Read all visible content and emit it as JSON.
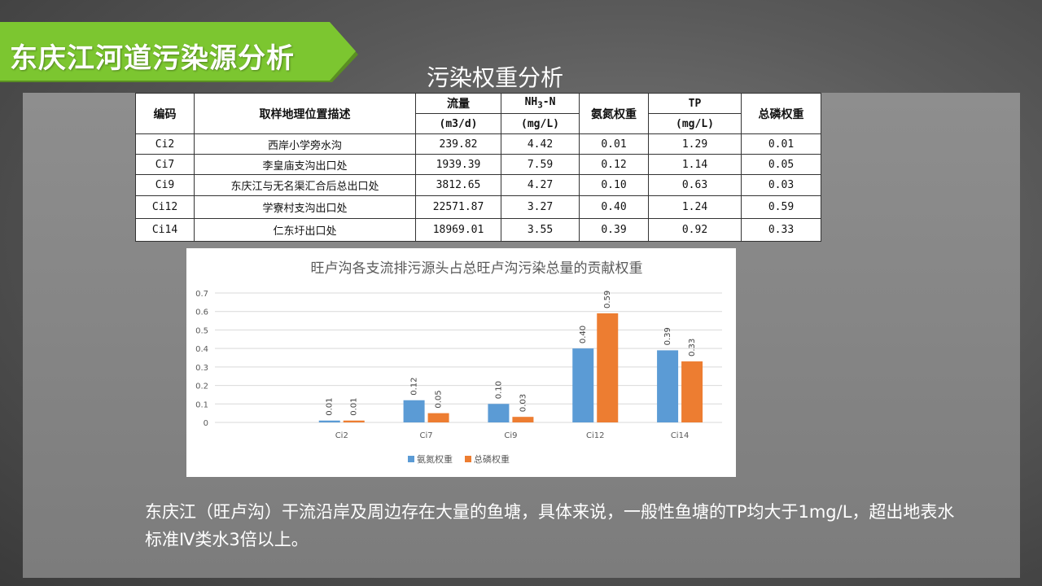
{
  "slide_title": "东庆江河道污染源分析",
  "subtitle": "污染权重分析",
  "colors": {
    "banner": "#7cc630",
    "ammonia": "#5b9bd5",
    "phosphorus": "#ed7d31"
  },
  "table": {
    "headers": {
      "id": "编码",
      "location": "取样地理位置描述",
      "flow": "流量",
      "flow_unit": "(m3/d)",
      "nh3_prefix": "NH",
      "nh3_sub": "3",
      "nh3_suffix": "-N",
      "nh3_unit": "(mg/L)",
      "ammonia_weight": "氨氮权重",
      "tp": "TP",
      "tp_unit": "(mg/L)",
      "tp_weight": "总磷权重"
    },
    "rows": [
      {
        "id": "Ci2",
        "location": "西岸小学旁水沟",
        "flow": "239.82",
        "nh3": "4.42",
        "nh3_w": "0.01",
        "tp": "1.29",
        "tp_w": "0.01"
      },
      {
        "id": "Ci7",
        "location": "李皇庙支沟出口处",
        "flow": "1939.39",
        "nh3": "7.59",
        "nh3_w": "0.12",
        "tp": "1.14",
        "tp_w": "0.05"
      },
      {
        "id": "Ci9",
        "location": "东庆江与无名渠汇合后总出口处",
        "flow": "3812.65",
        "nh3": "4.27",
        "nh3_w": "0.10",
        "tp": "0.63",
        "tp_w": "0.03"
      },
      {
        "id": "Ci12",
        "location": "学寮村支沟出口处",
        "flow": "22571.87",
        "nh3": "3.27",
        "nh3_w": "0.40",
        "tp": "1.24",
        "tp_w": "0.59"
      },
      {
        "id": "Ci14",
        "location": "仁东圩出口处",
        "flow": "18969.01",
        "nh3": "3.55",
        "nh3_w": "0.39",
        "tp": "0.92",
        "tp_w": "0.33"
      }
    ]
  },
  "chart_data": {
    "type": "bar",
    "title": "旺卢沟各支流排污源头占总旺卢沟污染总量的贡献权重",
    "categories": [
      "",
      "Ci2",
      "Ci7",
      "Ci9",
      "Ci12",
      "Ci14"
    ],
    "series": [
      {
        "name": "氨氮权重",
        "values": [
          null,
          0.01,
          0.12,
          0.1,
          0.4,
          0.39
        ],
        "labels": [
          "",
          "0.01",
          "0.12",
          "0.10",
          "0.40",
          "0.39"
        ],
        "color": "#5b9bd5"
      },
      {
        "name": "总磷权重",
        "values": [
          null,
          0.01,
          0.05,
          0.03,
          0.59,
          0.33
        ],
        "labels": [
          "",
          "0.01",
          "0.05",
          "0.03",
          "0.59",
          "0.33"
        ],
        "color": "#ed7d31"
      }
    ],
    "y_ticks": [
      "0",
      "0.1",
      "0.2",
      "0.3",
      "0.4",
      "0.5",
      "0.6",
      "0.7"
    ],
    "ylim": [
      0,
      0.7
    ],
    "grid": true,
    "legend": "bottom"
  },
  "description": "东庆江（旺卢沟）干流沿岸及周边存在大量的鱼塘，具体来说，一般性鱼塘的TP均大于1mg/L，超出地表水标准Ⅳ类水3倍以上。"
}
